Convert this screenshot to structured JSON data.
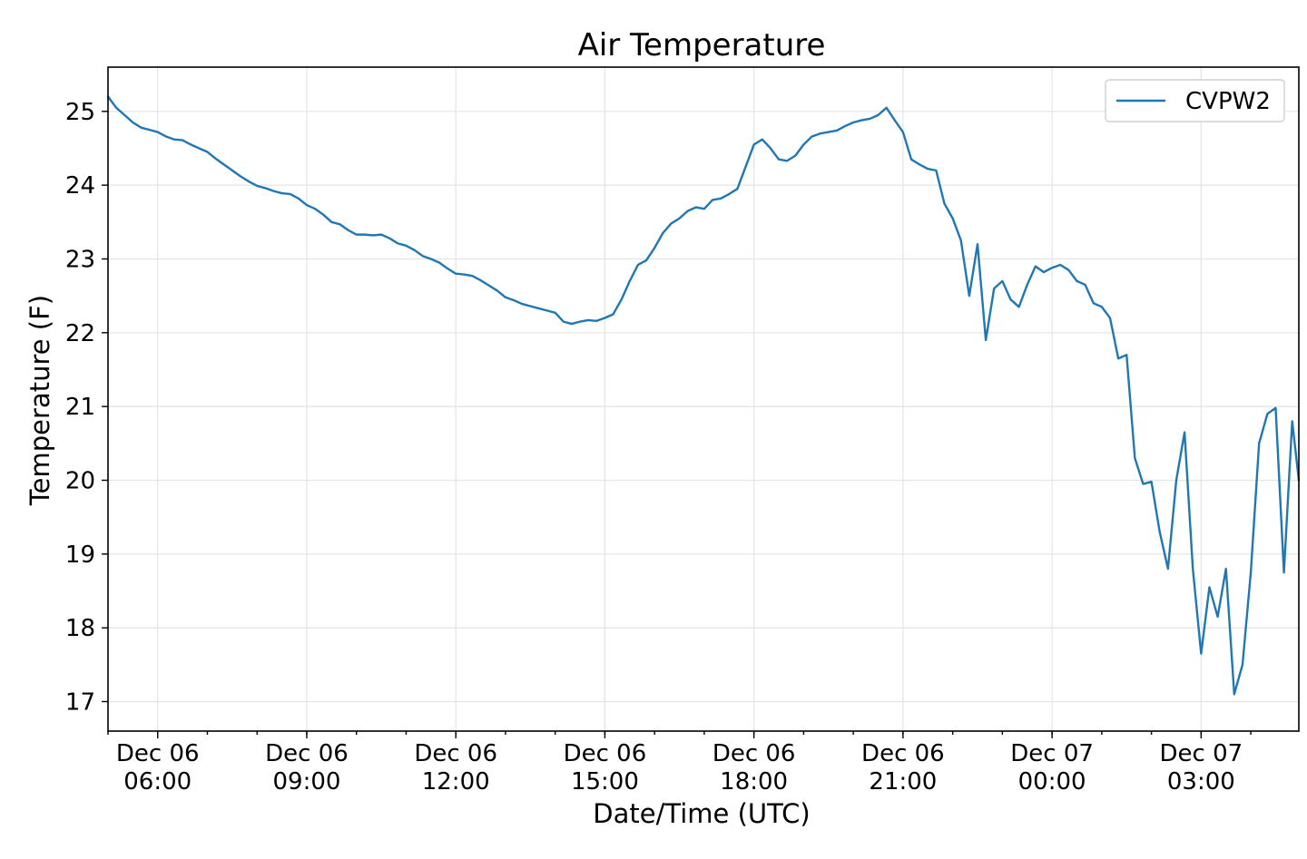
{
  "chart_data": {
    "type": "line",
    "title": "Air Temperature",
    "xlabel": "Date/Time (UTC)",
    "ylabel": "Temperature (F)",
    "x_unit": "hours",
    "xlim": [
      "2018-12-06T05:00",
      "2018-12-07T04:58"
    ],
    "ylim": [
      16.6,
      25.6
    ],
    "yticks": [
      17,
      18,
      19,
      20,
      21,
      22,
      23,
      24,
      25
    ],
    "xticks": [
      {
        "x": "2018-12-06T06:00",
        "line1": "Dec 06",
        "line2": "06:00"
      },
      {
        "x": "2018-12-06T09:00",
        "line1": "Dec 06",
        "line2": "09:00"
      },
      {
        "x": "2018-12-06T12:00",
        "line1": "Dec 06",
        "line2": "12:00"
      },
      {
        "x": "2018-12-06T15:00",
        "line1": "Dec 06",
        "line2": "15:00"
      },
      {
        "x": "2018-12-06T18:00",
        "line1": "Dec 06",
        "line2": "18:00"
      },
      {
        "x": "2018-12-06T21:00",
        "line1": "Dec 06",
        "line2": "21:00"
      },
      {
        "x": "2018-12-07T00:00",
        "line1": "Dec 07",
        "line2": "00:00"
      },
      {
        "x": "2018-12-07T03:00",
        "line1": "Dec 07",
        "line2": "03:00"
      }
    ],
    "grid": true,
    "legend_position": "top-right",
    "series": [
      {
        "name": "CVPW2",
        "color": "#1f77b4",
        "points": [
          [
            "2018-12-06T05:00",
            25.2
          ],
          [
            "2018-12-06T05:10",
            25.05
          ],
          [
            "2018-12-06T05:20",
            24.95
          ],
          [
            "2018-12-06T05:30",
            24.85
          ],
          [
            "2018-12-06T05:40",
            24.78
          ],
          [
            "2018-12-06T05:50",
            24.75
          ],
          [
            "2018-12-06T06:00",
            24.72
          ],
          [
            "2018-12-06T06:10",
            24.66
          ],
          [
            "2018-12-06T06:20",
            24.62
          ],
          [
            "2018-12-06T06:30",
            24.61
          ],
          [
            "2018-12-06T06:40",
            24.55
          ],
          [
            "2018-12-06T06:50",
            24.5
          ],
          [
            "2018-12-06T07:00",
            24.45
          ],
          [
            "2018-12-06T07:10",
            24.36
          ],
          [
            "2018-12-06T07:20",
            24.28
          ],
          [
            "2018-12-06T07:30",
            24.2
          ],
          [
            "2018-12-06T07:40",
            24.12
          ],
          [
            "2018-12-06T07:50",
            24.05
          ],
          [
            "2018-12-06T08:00",
            23.99
          ],
          [
            "2018-12-06T08:10",
            23.96
          ],
          [
            "2018-12-06T08:20",
            23.92
          ],
          [
            "2018-12-06T08:30",
            23.89
          ],
          [
            "2018-12-06T08:40",
            23.88
          ],
          [
            "2018-12-06T08:50",
            23.82
          ],
          [
            "2018-12-06T09:00",
            23.73
          ],
          [
            "2018-12-06T09:10",
            23.68
          ],
          [
            "2018-12-06T09:20",
            23.6
          ],
          [
            "2018-12-06T09:30",
            23.5
          ],
          [
            "2018-12-06T09:40",
            23.47
          ],
          [
            "2018-12-06T09:50",
            23.39
          ],
          [
            "2018-12-06T10:00",
            23.33
          ],
          [
            "2018-12-06T10:10",
            23.33
          ],
          [
            "2018-12-06T10:20",
            23.32
          ],
          [
            "2018-12-06T10:30",
            23.33
          ],
          [
            "2018-12-06T10:40",
            23.28
          ],
          [
            "2018-12-06T10:50",
            23.21
          ],
          [
            "2018-12-06T11:00",
            23.18
          ],
          [
            "2018-12-06T11:10",
            23.12
          ],
          [
            "2018-12-06T11:20",
            23.04
          ],
          [
            "2018-12-06T11:30",
            23.0
          ],
          [
            "2018-12-06T11:40",
            22.95
          ],
          [
            "2018-12-06T11:50",
            22.87
          ],
          [
            "2018-12-06T12:00",
            22.8
          ],
          [
            "2018-12-06T12:10",
            22.79
          ],
          [
            "2018-12-06T12:20",
            22.77
          ],
          [
            "2018-12-06T12:30",
            22.71
          ],
          [
            "2018-12-06T12:40",
            22.64
          ],
          [
            "2018-12-06T12:50",
            22.57
          ],
          [
            "2018-12-06T13:00",
            22.48
          ],
          [
            "2018-12-06T13:10",
            22.44
          ],
          [
            "2018-12-06T13:20",
            22.39
          ],
          [
            "2018-12-06T13:30",
            22.36
          ],
          [
            "2018-12-06T13:40",
            22.33
          ],
          [
            "2018-12-06T13:50",
            22.3
          ],
          [
            "2018-12-06T14:00",
            22.27
          ],
          [
            "2018-12-06T14:10",
            22.15
          ],
          [
            "2018-12-06T14:20",
            22.12
          ],
          [
            "2018-12-06T14:30",
            22.15
          ],
          [
            "2018-12-06T14:40",
            22.17
          ],
          [
            "2018-12-06T14:50",
            22.16
          ],
          [
            "2018-12-06T15:00",
            22.2
          ],
          [
            "2018-12-06T15:10",
            22.25
          ],
          [
            "2018-12-06T15:20",
            22.45
          ],
          [
            "2018-12-06T15:30",
            22.7
          ],
          [
            "2018-12-06T15:40",
            22.92
          ],
          [
            "2018-12-06T15:50",
            22.98
          ],
          [
            "2018-12-06T16:00",
            23.15
          ],
          [
            "2018-12-06T16:10",
            23.35
          ],
          [
            "2018-12-06T16:20",
            23.48
          ],
          [
            "2018-12-06T16:30",
            23.55
          ],
          [
            "2018-12-06T16:40",
            23.65
          ],
          [
            "2018-12-06T16:50",
            23.7
          ],
          [
            "2018-12-06T17:00",
            23.68
          ],
          [
            "2018-12-06T17:10",
            23.8
          ],
          [
            "2018-12-06T17:20",
            23.82
          ],
          [
            "2018-12-06T17:30",
            23.88
          ],
          [
            "2018-12-06T17:40",
            23.95
          ],
          [
            "2018-12-06T17:50",
            24.25
          ],
          [
            "2018-12-06T18:00",
            24.55
          ],
          [
            "2018-12-06T18:10",
            24.62
          ],
          [
            "2018-12-06T18:20",
            24.5
          ],
          [
            "2018-12-06T18:30",
            24.35
          ],
          [
            "2018-12-06T18:40",
            24.33
          ],
          [
            "2018-12-06T18:50",
            24.4
          ],
          [
            "2018-12-06T19:00",
            24.55
          ],
          [
            "2018-12-06T19:10",
            24.66
          ],
          [
            "2018-12-06T19:20",
            24.7
          ],
          [
            "2018-12-06T19:30",
            24.72
          ],
          [
            "2018-12-06T19:40",
            24.74
          ],
          [
            "2018-12-06T19:50",
            24.8
          ],
          [
            "2018-12-06T20:00",
            24.85
          ],
          [
            "2018-12-06T20:10",
            24.88
          ],
          [
            "2018-12-06T20:20",
            24.9
          ],
          [
            "2018-12-06T20:30",
            24.95
          ],
          [
            "2018-12-06T20:40",
            25.05
          ],
          [
            "2018-12-06T20:50",
            24.88
          ],
          [
            "2018-12-06T21:00",
            24.72
          ],
          [
            "2018-12-06T21:10",
            24.35
          ],
          [
            "2018-12-06T21:20",
            24.28
          ],
          [
            "2018-12-06T21:30",
            24.22
          ],
          [
            "2018-12-06T21:40",
            24.2
          ],
          [
            "2018-12-06T21:50",
            23.75
          ],
          [
            "2018-12-06T22:00",
            23.55
          ],
          [
            "2018-12-06T22:10",
            23.25
          ],
          [
            "2018-12-06T22:20",
            22.5
          ],
          [
            "2018-12-06T22:30",
            23.2
          ],
          [
            "2018-12-06T22:40",
            21.9
          ],
          [
            "2018-12-06T22:50",
            22.6
          ],
          [
            "2018-12-06T23:00",
            22.7
          ],
          [
            "2018-12-06T23:10",
            22.45
          ],
          [
            "2018-12-06T23:20",
            22.35
          ],
          [
            "2018-12-06T23:30",
            22.65
          ],
          [
            "2018-12-06T23:40",
            22.9
          ],
          [
            "2018-12-06T23:50",
            22.82
          ],
          [
            "2018-12-07T00:00",
            22.88
          ],
          [
            "2018-12-07T00:10",
            22.92
          ],
          [
            "2018-12-07T00:20",
            22.85
          ],
          [
            "2018-12-07T00:30",
            22.7
          ],
          [
            "2018-12-07T00:40",
            22.65
          ],
          [
            "2018-12-07T00:50",
            22.4
          ],
          [
            "2018-12-07T01:00",
            22.35
          ],
          [
            "2018-12-07T01:10",
            22.2
          ],
          [
            "2018-12-07T01:20",
            21.65
          ],
          [
            "2018-12-07T01:30",
            21.7
          ],
          [
            "2018-12-07T01:40",
            20.3
          ],
          [
            "2018-12-07T01:50",
            19.95
          ],
          [
            "2018-12-07T02:00",
            19.98
          ],
          [
            "2018-12-07T02:10",
            19.3
          ],
          [
            "2018-12-07T02:20",
            18.8
          ],
          [
            "2018-12-07T02:30",
            20.0
          ],
          [
            "2018-12-07T02:40",
            20.65
          ],
          [
            "2018-12-07T02:50",
            18.8
          ],
          [
            "2018-12-07T03:00",
            17.65
          ],
          [
            "2018-12-07T03:10",
            18.55
          ],
          [
            "2018-12-07T03:20",
            18.15
          ],
          [
            "2018-12-07T03:30",
            18.8
          ],
          [
            "2018-12-07T03:40",
            17.1
          ],
          [
            "2018-12-07T03:50",
            17.5
          ],
          [
            "2018-12-07T04:00",
            18.75
          ],
          [
            "2018-12-07T04:10",
            20.5
          ],
          [
            "2018-12-07T04:20",
            20.9
          ],
          [
            "2018-12-07T04:30",
            20.98
          ],
          [
            "2018-12-07T04:40",
            18.75
          ],
          [
            "2018-12-07T04:50",
            20.8
          ],
          [
            "2018-12-07T04:58",
            20.0
          ]
        ]
      }
    ]
  }
}
